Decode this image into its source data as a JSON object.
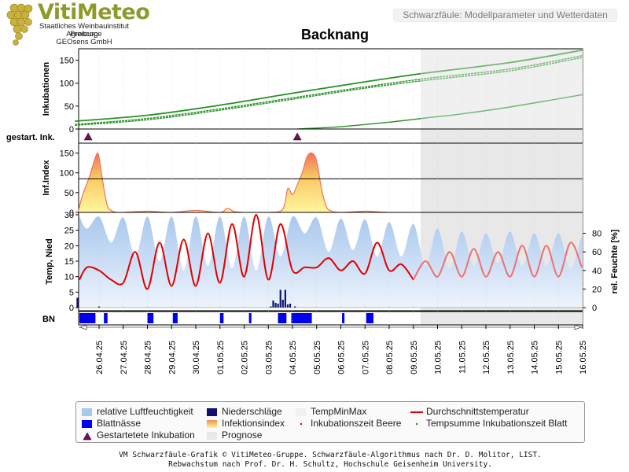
{
  "header": {
    "logo_word": "VitiMeteo",
    "logo_lines": [
      "Staatliches Weinbauinstitut Freiburg",
      "Agroscope",
      "GEOsens GmbH"
    ],
    "subtitle": "Schwarzfäule: Modellparameter und Wetterdaten"
  },
  "title": "Backnang",
  "panels": {
    "inkubation": {
      "ylabel": "Inkubationen",
      "yticks": [
        "0",
        "50",
        "100",
        "150"
      ]
    },
    "gestart": {
      "label": "gestart. Ink."
    },
    "infindex": {
      "ylabel": "Inf.Index",
      "yticks": [
        "0",
        "50",
        "100",
        "150"
      ]
    },
    "temp": {
      "ylabel": "Temp, Nied",
      "yticks": [
        "0",
        "5",
        "10",
        "15",
        "20",
        "25",
        "30"
      ],
      "y2label": "rel. Feuchte [%]",
      "y2ticks": [
        "0",
        "20",
        "40",
        "60",
        "80"
      ]
    },
    "bn": {
      "label": "BN"
    }
  },
  "chart_data": {
    "type": "line",
    "x_dates": [
      "26.04.25",
      "27.04.25",
      "28.04.25",
      "29.04.25",
      "30.04.25",
      "01.05.25",
      "02.05.25",
      "03.05.25",
      "04.05.25",
      "05.05.25",
      "06.05.25",
      "07.05.25",
      "08.05.25",
      "09.05.25",
      "10.05.25",
      "11.05.25",
      "12.05.25",
      "13.05.25",
      "14.05.25",
      "15.05.25",
      "16.05.25"
    ],
    "x_range": [
      "25.04.25",
      "16.05.25"
    ],
    "forecast_start": "09.05.25 ~20:00",
    "incubation": {
      "ylim": [
        0,
        175
      ],
      "threshold": 0,
      "series": [
        {
          "x": [
            0,
            3,
            6,
            9,
            12,
            14.5,
            18,
            21
          ],
          "values": [
            17,
            30,
            52,
            78,
            103,
            122,
            145,
            172
          ]
        },
        {
          "x": [
            0,
            3,
            6,
            9,
            12,
            14.5,
            18,
            21
          ],
          "values": [
            10,
            23,
            44,
            68,
            92,
            110,
            131,
            160
          ]
        },
        {
          "x": [
            0,
            3,
            6,
            9,
            12,
            14.5,
            18,
            21
          ],
          "values": [
            8,
            20,
            41,
            65,
            89,
            106,
            127,
            156
          ]
        },
        {
          "x": [
            9.2,
            11,
            13,
            14.5,
            16,
            18,
            21
          ],
          "values": [
            0,
            5,
            15,
            24,
            33,
            48,
            75
          ]
        }
      ]
    },
    "started_incubations": [
      "25.04.25 ~14:00",
      "04.05.25 ~08:00"
    ],
    "infection_index": {
      "ylim": [
        0,
        175
      ],
      "threshold": 85,
      "x": [
        0,
        0.3,
        0.6,
        0.8,
        0.95,
        1.05,
        1.2,
        1.35,
        1.5,
        1.7,
        2.0,
        3.0,
        4.0,
        5.0,
        6.0,
        6.3,
        6.6,
        7.0,
        8.0,
        8.6,
        8.8,
        9.0,
        9.2,
        9.4,
        9.6,
        9.8,
        10.0,
        10.2,
        10.4,
        10.6,
        11.0,
        12.0,
        13.0,
        14.5
      ],
      "values": [
        5,
        40,
        90,
        130,
        150,
        120,
        60,
        15,
        5,
        0,
        0,
        3,
        0,
        5,
        0,
        10,
        2,
        0,
        0,
        8,
        60,
        45,
        70,
        100,
        140,
        150,
        130,
        60,
        15,
        4,
        0,
        3,
        0,
        0
      ]
    },
    "temperature": {
      "ylim": [
        0,
        30
      ],
      "x": [
        0,
        0.5,
        1.0,
        1.5,
        2.0,
        2.5,
        3.0,
        3.5,
        4.0,
        4.5,
        5.0,
        5.5,
        6.0,
        6.5,
        7.0,
        7.5,
        8.0,
        8.5,
        9.0,
        9.5,
        10.0,
        10.5,
        11.0,
        11.5,
        12.0,
        12.5,
        13.0,
        13.5,
        14.0,
        14.5,
        15.0,
        15.5,
        16.0,
        16.5,
        17.0,
        17.5,
        18.0,
        18.5,
        19.0,
        19.5,
        20.0,
        20.5,
        21.0
      ],
      "values": [
        9,
        13,
        12,
        9,
        8,
        18,
        6,
        21,
        7,
        22,
        7,
        24,
        8,
        27,
        10,
        30,
        9,
        27,
        12,
        13,
        13,
        16,
        12,
        15,
        11,
        21,
        12,
        14,
        9,
        15,
        10,
        18,
        10,
        19,
        10,
        18,
        10,
        20,
        10,
        20,
        10,
        21,
        13
      ]
    },
    "rel_humidity": {
      "ylim": [
        0,
        100
      ],
      "x": [
        0,
        0.5,
        1.0,
        1.5,
        2.0,
        2.5,
        3.0,
        3.5,
        4.0,
        4.5,
        5.0,
        5.5,
        6.0,
        6.5,
        7.0,
        7.5,
        8.0,
        8.5,
        9.0,
        9.5,
        10.0,
        10.5,
        11.0,
        11.5,
        12.0,
        12.5,
        13.0,
        13.5,
        14.0,
        14.5,
        15.0,
        15.5,
        16.0,
        16.5,
        17.0,
        17.5,
        18.0,
        18.5,
        19.0,
        19.5,
        20.0,
        20.5,
        21.0
      ],
      "values": [
        98,
        85,
        98,
        70,
        97,
        55,
        98,
        50,
        98,
        40,
        98,
        45,
        98,
        42,
        98,
        40,
        98,
        55,
        98,
        80,
        97,
        60,
        96,
        62,
        95,
        55,
        92,
        55,
        90,
        45,
        85,
        42,
        82,
        45,
        80,
        48,
        82,
        45,
        80,
        45,
        80,
        42,
        78
      ]
    },
    "precipitation": {
      "x": [
        0.1,
        1.0,
        8.1,
        8.2,
        8.3,
        8.4,
        8.5,
        8.6,
        8.7,
        8.8,
        8.9,
        9.1
      ],
      "values": [
        2.5,
        0.3,
        0.3,
        1.8,
        1.2,
        1.0,
        4.5,
        2.0,
        4.5,
        0.8,
        1.0,
        0.3
      ]
    },
    "leaf_wetness": [
      [
        0.05,
        0.85
      ],
      [
        1.2,
        1.35
      ],
      [
        3.0,
        3.25
      ],
      [
        4.05,
        4.25
      ],
      [
        6.0,
        6.15
      ],
      [
        7.2,
        7.3
      ],
      [
        8.4,
        8.75
      ],
      [
        8.95,
        9.8
      ],
      [
        11.05,
        11.15
      ],
      [
        12.05,
        12.35
      ]
    ],
    "legend": [
      {
        "label": "relative Luftfeuchtigkeit",
        "kind": "humidity"
      },
      {
        "label": "Niederschläge",
        "kind": "precip"
      },
      {
        "label": "TempMinMax",
        "kind": "tempminmax"
      },
      {
        "label": "Durchschnittstemperatur",
        "kind": "avgtemp"
      },
      {
        "label": "Blattnässe",
        "kind": "wetness"
      },
      {
        "label": "Infektionsindex",
        "kind": "infindex"
      },
      {
        "label": "Inkubationszeit Beere",
        "kind": "dot-red"
      },
      {
        "label": "Tempsumme Inkubationszeit Blatt",
        "kind": "dot-green"
      },
      {
        "label": "Gestartetete Inkubation",
        "kind": "triangle"
      },
      {
        "label": "Prognose",
        "kind": "forecast"
      }
    ],
    "colors": {
      "incubation": "#1a8a1a",
      "forecast": "#e8e8e8",
      "avg_temp": "#e00000",
      "precip": "#101070",
      "leaf_wetness": "#0000ee",
      "triangle": "#701060"
    }
  },
  "footer": {
    "line1": "VM Schwarzfäule-Grafik © VitiMeteo-Gruppe. Schwarzfäule-Algorithmus nach Dr. D. Molitor, LIST.",
    "line2": "Rebwachstum nach Prof. Dr. H. Schultz, Hochschule Geisenheim University."
  }
}
